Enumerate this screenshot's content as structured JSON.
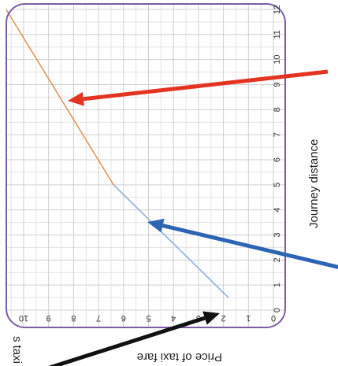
{
  "chart_data": {
    "type": "line",
    "orientation": "rotated",
    "xlabel": "Journey distance",
    "ylabel": "Price of taxi fare",
    "ylabel_partial": "s taxi s",
    "xlim": [
      0,
      12
    ],
    "ylim": [
      0,
      10
    ],
    "x_ticks": [
      "0",
      "1",
      "2",
      "3",
      "4",
      "5",
      "6",
      "7",
      "8",
      "9",
      "10",
      "11",
      "12"
    ],
    "y_ticks": [
      "0",
      "1",
      "2",
      "3",
      "4",
      "5",
      "6",
      "7",
      "8",
      "9",
      "10"
    ],
    "grid": true,
    "series": [
      {
        "color": "#8fb1dc",
        "points": [
          [
            0.5,
            1.8
          ],
          [
            5.0,
            6.4
          ]
        ]
      },
      {
        "color": "#e0955e",
        "points": [
          [
            5.0,
            6.4
          ],
          [
            12.0,
            10.7
          ]
        ]
      }
    ],
    "annotations": [
      {
        "color": "#e53322"
      },
      {
        "color": "#2d64b3"
      },
      {
        "color": "#111111"
      }
    ],
    "colors": {
      "frame": "#7b5ea7",
      "grid": "#e3e3e3",
      "grid_major": "#cfcfcf"
    }
  }
}
